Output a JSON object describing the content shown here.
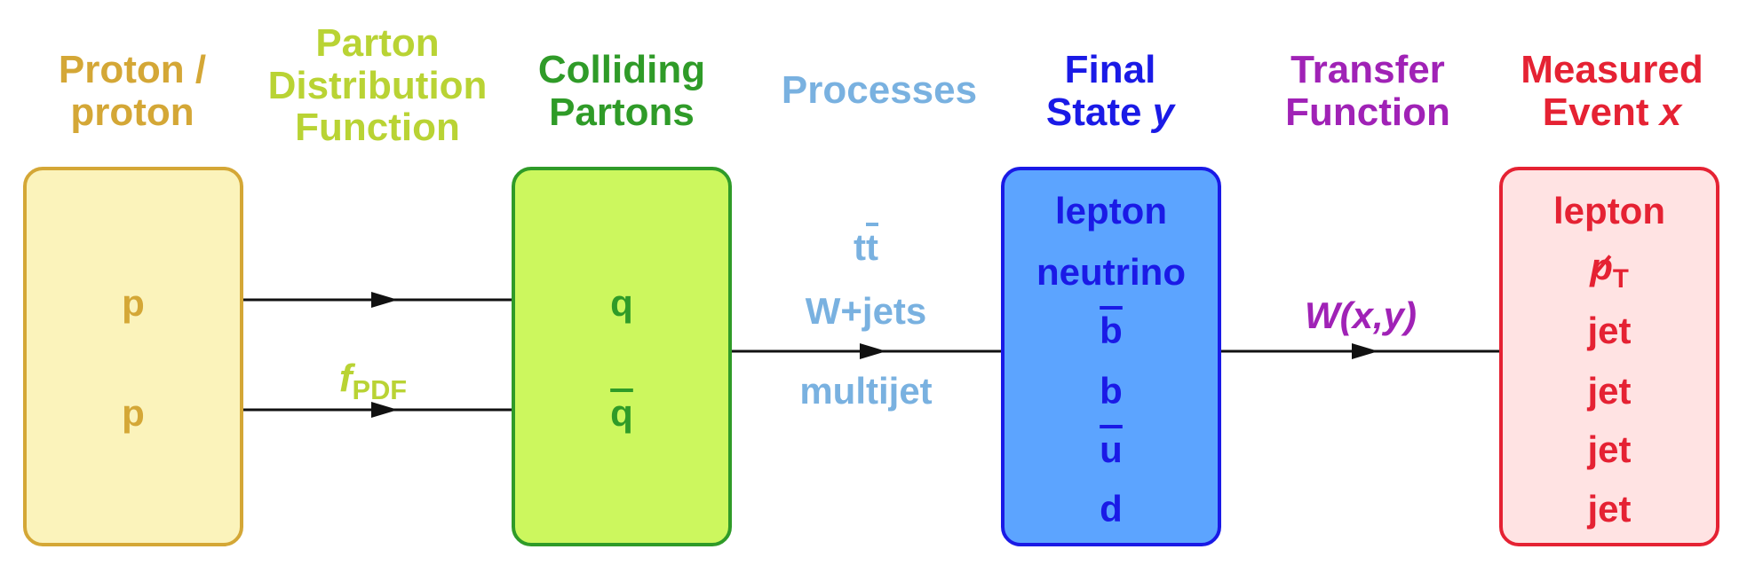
{
  "colors": {
    "proton": "#d4a736",
    "proton_fill": "#fbf3bb",
    "pdf": "#b9d334",
    "parton": "#2f9b28",
    "parton_fill": "#ccf75e",
    "processes": "#79b1e0",
    "final": "#1a1ae6",
    "final_fill": "#5ca4ff",
    "transfer": "#a022b6",
    "measured": "#e52233",
    "measured_fill": "#ffe3e3",
    "arrow": "#111111"
  },
  "headers": {
    "proton": [
      "Proton /",
      "proton"
    ],
    "pdf": [
      "Parton",
      "Distribution",
      "Function"
    ],
    "colliding": [
      "Colliding",
      "Partons"
    ],
    "processes": [
      "Processes"
    ],
    "final": [
      "Final",
      "State"
    ],
    "final_var": "y",
    "transfer": [
      "Transfer",
      "Function"
    ],
    "measured": [
      "Measured",
      "Event"
    ],
    "measured_var": "x"
  },
  "proton_box": {
    "items": [
      "p",
      "p"
    ]
  },
  "parton_box": {
    "items": [
      "q",
      "q"
    ]
  },
  "pdf_label": {
    "symbol": "f",
    "subscript": "PDF"
  },
  "process_labels": [
    "tt",
    "W+jets",
    "multijet"
  ],
  "final_box": {
    "items": [
      "lepton",
      "neutrino",
      "b",
      "b",
      "u",
      "d"
    ]
  },
  "transfer_label": "W(x,y)",
  "measured_box": {
    "items": [
      "lepton",
      "p",
      "jet",
      "jet",
      "jet",
      "jet"
    ],
    "pt_subscript": "T"
  }
}
